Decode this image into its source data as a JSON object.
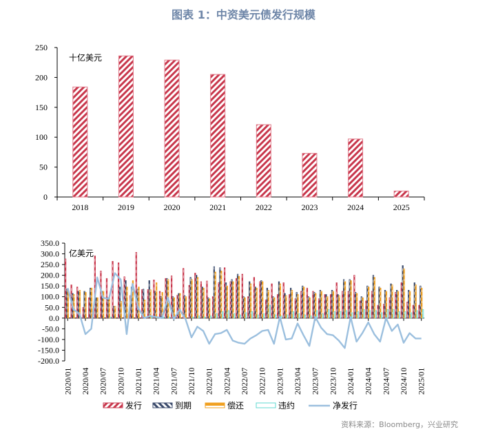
{
  "header": {
    "title": "图表 1：中资美元债发行规模"
  },
  "footer": {
    "source": "资料来源：Bloomberg，兴业研究"
  },
  "colors": {
    "issuance": "#c8374c",
    "maturity": "#3a4a6b",
    "repayment": "#f0a020",
    "default": "#5fd8d0",
    "net_issuance": "#9bbfde",
    "title": "#6e86a8"
  },
  "chart_data": [
    {
      "type": "bar",
      "title": "",
      "unit_label": "十亿美元",
      "xlabel": "",
      "ylabel": "十亿美元",
      "ylim": [
        0,
        250
      ],
      "yticks": [
        0,
        50,
        100,
        150,
        200,
        250
      ],
      "categories": [
        "2018",
        "2019",
        "2020",
        "2021",
        "2022",
        "2023",
        "2024",
        "2025"
      ],
      "series": [
        {
          "name": "发行",
          "values": [
            184,
            236,
            229,
            205,
            121,
            73,
            97,
            10
          ]
        }
      ],
      "grid": false,
      "legend": null
    },
    {
      "type": "bar+line",
      "unit_label": "亿美元",
      "ylabel": "亿美元",
      "ylim": [
        -200,
        350
      ],
      "yticks": [
        -200.0,
        -150.0,
        -100.0,
        -50.0,
        0.0,
        50.0,
        100.0,
        150.0,
        200.0,
        250.0,
        300.0,
        350.0
      ],
      "ytick_labels": [
        "-200.0",
        "-150.0",
        "-100.0",
        "-50.0",
        "0.0",
        "50.0",
        "100.0",
        "150.0",
        "200.0",
        "250.0",
        "300.0",
        "350.0"
      ],
      "xtick_labels": [
        "2020/01",
        "2020/04",
        "2020/07",
        "2020/10",
        "2021/01",
        "2021/04",
        "2021/07",
        "2021/10",
        "2022/01",
        "2022/04",
        "2022/07",
        "2022/10",
        "2023/01",
        "2023/04",
        "2023/07",
        "2023/10",
        "2024/01",
        "2024/04",
        "2024/07",
        "2024/10",
        "2025/01"
      ],
      "legend_position": "bottom",
      "grid": false,
      "series": [
        {
          "name": "发行",
          "style": "bar",
          "values": [
            276,
            155,
            145,
            50,
            95,
            290,
            220,
            185,
            265,
            258,
            193,
            105,
            307,
            133,
            133,
            178,
            125,
            185,
            197,
            107,
            232,
            153,
            210,
            170,
            173,
            100,
            165,
            235,
            170,
            185,
            205,
            100,
            190,
            170,
            85,
            160,
            110,
            165,
            110,
            90,
            125,
            140,
            125,
            90,
            110,
            110,
            165,
            125,
            125,
            200,
            80,
            80,
            125,
            60,
            65,
            95,
            120,
            165,
            75,
            60,
            60
          ]
        },
        {
          "name": "到期",
          "style": "bar",
          "values": [
            135,
            115,
            125,
            125,
            140,
            95,
            125,
            95,
            55,
            145,
            175,
            145,
            135,
            135,
            175,
            125,
            100,
            185,
            100,
            115,
            105,
            190,
            200,
            145,
            95,
            240,
            235,
            165,
            180,
            205,
            100,
            170,
            145,
            175,
            140,
            100,
            170,
            115,
            140,
            120,
            150,
            100,
            120,
            130,
            110,
            130,
            110,
            180,
            180,
            120,
            100,
            150,
            200,
            145,
            130,
            160,
            130,
            245,
            130,
            165,
            150
          ]
        },
        {
          "name": "偿还",
          "style": "bar",
          "values": [
            135,
            110,
            130,
            120,
            140,
            95,
            125,
            95,
            55,
            78,
            145,
            175,
            145,
            85,
            132,
            165,
            120,
            180,
            95,
            115,
            100,
            180,
            190,
            140,
            90,
            215,
            220,
            150,
            170,
            195,
            95,
            160,
            140,
            170,
            130,
            95,
            160,
            105,
            130,
            110,
            145,
            95,
            115,
            125,
            100,
            125,
            105,
            170,
            175,
            115,
            95,
            145,
            190,
            140,
            125,
            155,
            125,
            230,
            125,
            155,
            140
          ]
        },
        {
          "name": "违约",
          "style": "bar",
          "values": [
            0,
            0,
            0,
            0,
            0,
            0,
            0,
            5,
            0,
            0,
            0,
            0,
            0,
            0,
            5,
            5,
            5,
            5,
            0,
            0,
            0,
            5,
            10,
            5,
            10,
            20,
            30,
            35,
            20,
            15,
            25,
            30,
            15,
            20,
            60,
            15,
            10,
            15,
            30,
            20,
            15,
            10,
            35,
            20,
            40,
            30,
            30,
            35,
            25,
            30,
            40,
            35,
            35,
            25,
            40,
            40,
            30,
            30,
            25,
            35,
            40
          ]
        },
        {
          "name": "净发行",
          "style": "line",
          "values": [
            140,
            40,
            20,
            -75,
            -50,
            190,
            95,
            90,
            210,
            180,
            -75,
            160,
            45,
            0,
            10,
            5,
            0,
            95,
            -5,
            40,
            -5,
            -90,
            -40,
            -60,
            -120,
            -75,
            -70,
            -55,
            -105,
            -115,
            -120,
            -95,
            -80,
            -60,
            -55,
            -120,
            5,
            -100,
            -95,
            -25,
            -80,
            -130,
            5,
            -45,
            -75,
            -80,
            -105,
            -140,
            5,
            -110,
            -70,
            -20,
            -75,
            -110,
            0,
            -60,
            -30,
            -115,
            -70,
            -95,
            -95
          ]
        }
      ]
    }
  ]
}
